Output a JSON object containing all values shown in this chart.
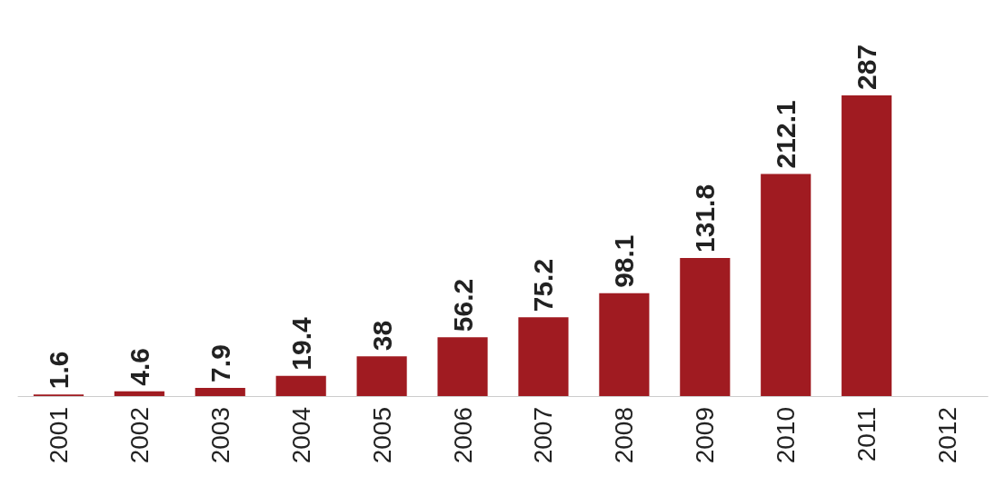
{
  "chart_data": {
    "type": "bar",
    "categories": [
      "2001",
      "2002",
      "2003",
      "2004",
      "2005",
      "2006",
      "2007",
      "2008",
      "2009",
      "2010",
      "2011",
      "2012"
    ],
    "values": [
      1.6,
      4.6,
      7.9,
      19.4,
      38,
      56.2,
      75.2,
      98.1,
      131.8,
      212.1,
      287,
      null
    ],
    "value_labels": [
      "1.6",
      "4.6",
      "7.9",
      "19.4",
      "38",
      "56.2",
      "75.2",
      "98.1",
      "131.8",
      "212.1",
      "287",
      null
    ],
    "color": "#a01b21"
  }
}
